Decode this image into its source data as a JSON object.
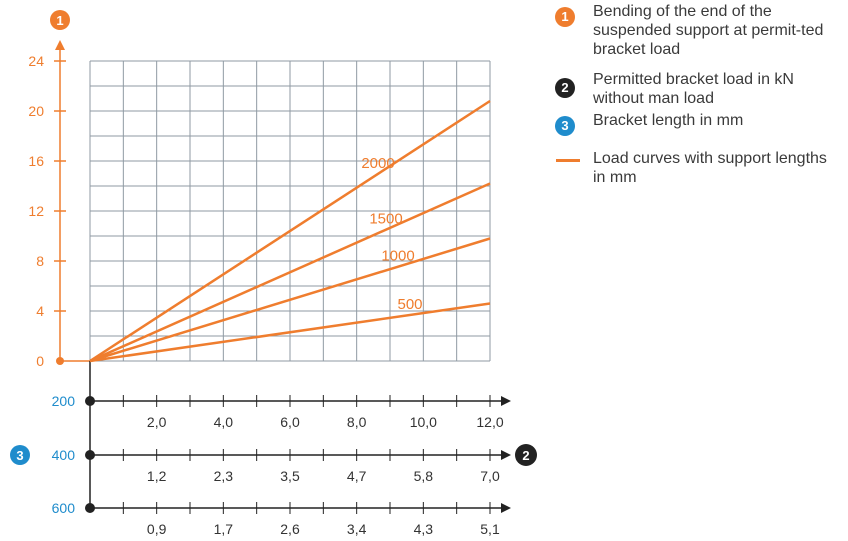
{
  "colors": {
    "accent": "#ef7d2e",
    "badge_dark": "#222222",
    "badge_blue": "#1f8ccc",
    "grid": "#8f9aa3",
    "axis_text": "#1f8ccc"
  },
  "legend": [
    {
      "badge": "1",
      "color": "#ef7d2e",
      "text": "Bending of the end of the suspended support at permit-ted bracket load"
    },
    {
      "badge": "2",
      "color": "#222222",
      "text": "Permitted bracket load in kN without man load"
    },
    {
      "badge": "3",
      "color": "#1f8ccc",
      "text": "Bracket length in mm"
    },
    {
      "line": true,
      "color": "#ef7d2e",
      "text": "Load curves with support lengths in mm"
    }
  ],
  "chart_data": {
    "type": "line",
    "y_axis": {
      "badge": "1",
      "ticks": [
        "0",
        "4",
        "8",
        "12",
        "16",
        "20",
        "24"
      ],
      "ylim": [
        0,
        24
      ]
    },
    "x_axes": [
      {
        "bracket_length": "200",
        "ticks": [
          "2,0",
          "4,0",
          "6,0",
          "8,0",
          "10,0",
          "12,0"
        ],
        "xlim": [
          0,
          12
        ]
      },
      {
        "bracket_length": "400",
        "ticks": [
          "1,2",
          "2,3",
          "3,5",
          "4,7",
          "5,8",
          "7,0"
        ],
        "xlim": [
          0,
          7
        ]
      },
      {
        "bracket_length": "600",
        "ticks": [
          "0,9",
          "1,7",
          "2,6",
          "3,4",
          "4,3",
          "5,1"
        ],
        "xlim": [
          0,
          5.1
        ]
      }
    ],
    "x_axis_badge_left": "3",
    "x_axis_badge_right": "2",
    "series": [
      {
        "name": "2000",
        "x": [
          0,
          12
        ],
        "y": [
          0,
          20.8
        ]
      },
      {
        "name": "1500",
        "x": [
          0,
          12
        ],
        "y": [
          0,
          14.2
        ]
      },
      {
        "name": "1000",
        "x": [
          0,
          12
        ],
        "y": [
          0,
          9.8
        ]
      },
      {
        "name": "500",
        "x": [
          0,
          12
        ],
        "y": [
          0,
          4.6
        ]
      }
    ],
    "grid": true
  }
}
